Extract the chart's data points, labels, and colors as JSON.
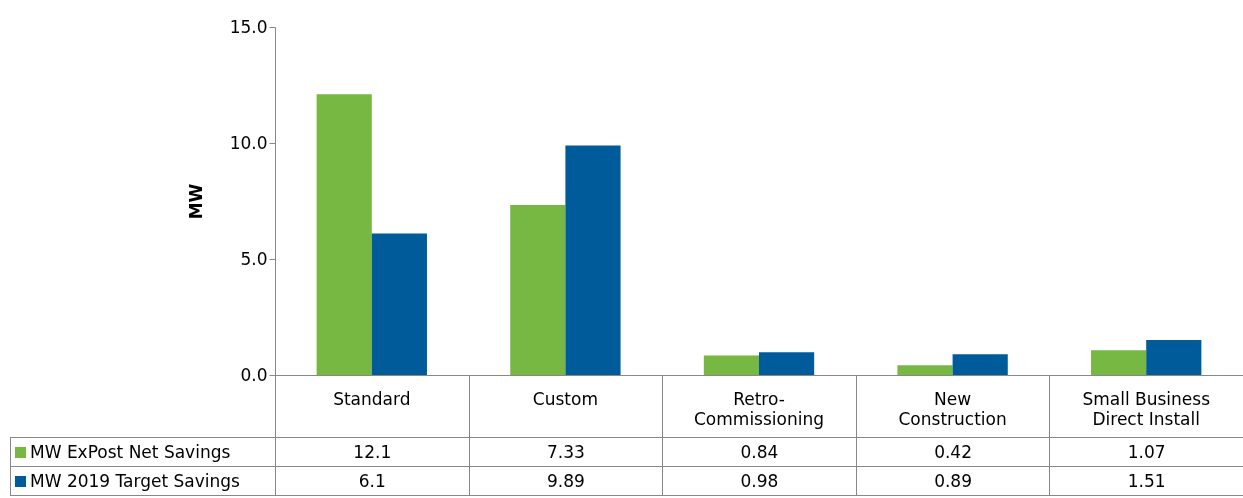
{
  "chart_data": {
    "type": "bar",
    "ylabel": "MW",
    "categories": [
      "Standard",
      "Custom",
      "Retro-Commissioning",
      "New Construction",
      "Small Business Direct Install"
    ],
    "series": [
      {
        "name": "MW ExPost Net Savings",
        "color": "#77b843",
        "values": [
          12.1,
          7.33,
          0.84,
          0.42,
          1.07
        ]
      },
      {
        "name": "MW 2019 Target Savings",
        "color": "#005b9a",
        "values": [
          6.1,
          9.89,
          0.98,
          0.89,
          1.51
        ]
      }
    ],
    "ylim": [
      0,
      15
    ],
    "yticks": [
      {
        "value": 0,
        "label": "0.0"
      },
      {
        "value": 5,
        "label": "5.0"
      },
      {
        "value": 10,
        "label": "10.0"
      },
      {
        "value": 15,
        "label": "15.0"
      }
    ],
    "data_labels": true,
    "legend": "bottom",
    "grid": false
  }
}
